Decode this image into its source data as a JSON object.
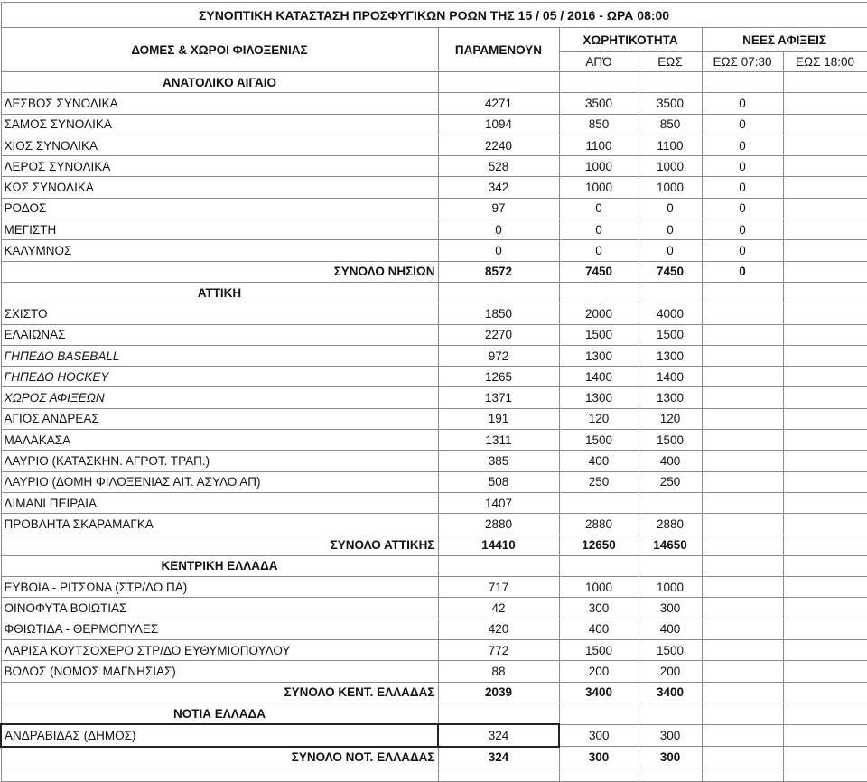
{
  "title": "ΣΥΝΟΠΤΙΚΗ ΚΑΤΑΣΤΑΣΗ ΠΡΟΣΦΥΓΙΚΩΝ ΡΟΩΝ ΤΗΣ 15 / 05 / 2016 - ΩΡΑ 08:00",
  "headers": {
    "structures": "ΔΟΜΕΣ & ΧΩΡΟΙ ΦΙΛΟΞΕΝΙΑΣ",
    "remaining": "ΠΑΡΑΜΕΝΟΥΝ",
    "capacity": "ΧΩΡΗΤΙΚΟΤΗΤΑ",
    "capacity_from": "ΑΠΌ",
    "capacity_to": "ΕΩΣ",
    "new_arrivals": "ΝΕΕΣ ΑΦΙΞΕΙΣ",
    "arrivals_0730": "ΕΩΣ 07:30",
    "arrivals_1800": "ΕΩΣ 18:00"
  },
  "sections": [
    {
      "name": "ΑΝΑΤΟΛΙΚΟ ΑΙΓΑΙΟ",
      "rows": [
        {
          "name": "ΛΕΣΒΟΣ ΣΥΝΟΛΙΚΑ",
          "remaining": "4271",
          "from": "3500",
          "to": "3500",
          "a0730": "0",
          "a1800": ""
        },
        {
          "name": "ΣΑΜΟΣ ΣΥΝΟΛΙΚΑ",
          "remaining": "1094",
          "from": "850",
          "to": "850",
          "a0730": "0",
          "a1800": ""
        },
        {
          "name": "ΧΙΟΣ ΣΥΝΟΛΙΚΑ",
          "remaining": "2240",
          "from": "1100",
          "to": "1100",
          "a0730": "0",
          "a1800": ""
        },
        {
          "name": "ΛΕΡΟΣ ΣΥΝΟΛΙΚΑ",
          "remaining": "528",
          "from": "1000",
          "to": "1000",
          "a0730": "0",
          "a1800": ""
        },
        {
          "name": "ΚΩΣ ΣΥΝΟΛΙΚΑ",
          "remaining": "342",
          "from": "1000",
          "to": "1000",
          "a0730": "0",
          "a1800": ""
        },
        {
          "name": "ΡΟΔΟΣ",
          "remaining": "97",
          "from": "0",
          "to": "0",
          "a0730": "0",
          "a1800": ""
        },
        {
          "name": "ΜΕΓΙΣΤΗ",
          "remaining": "0",
          "from": "0",
          "to": "0",
          "a0730": "0",
          "a1800": ""
        },
        {
          "name": "ΚΑΛΥΜΝΟΣ",
          "remaining": "0",
          "from": "0",
          "to": "0",
          "a0730": "0",
          "a1800": ""
        }
      ],
      "total": {
        "name": "ΣΥΝΟΛΟ ΝΗΣΙΩΝ",
        "remaining": "8572",
        "from": "7450",
        "to": "7450",
        "a0730": "0",
        "a1800": ""
      }
    },
    {
      "name": "ΑΤΤΙΚΗ",
      "rows": [
        {
          "name": "ΣΧΙΣΤΟ",
          "remaining": "1850",
          "from": "2000",
          "to": "4000",
          "a0730": "",
          "a1800": ""
        },
        {
          "name": "ΕΛΑΙΩΝΑΣ",
          "remaining": "2270",
          "from": "1500",
          "to": "1500",
          "a0730": "",
          "a1800": ""
        },
        {
          "name": "ΓΗΠΕΔΟ BASEBALL",
          "remaining": "972",
          "from": "1300",
          "to": "1300",
          "a0730": "",
          "a1800": "",
          "italic": true
        },
        {
          "name": "ΓΗΠΕΔΟ HOCKEY",
          "remaining": "1265",
          "from": "1400",
          "to": "1400",
          "a0730": "",
          "a1800": "",
          "italic": true
        },
        {
          "name": "ΧΩΡΟΣ ΑΦΙΞΕΩΝ",
          "remaining": "1371",
          "from": "1300",
          "to": "1300",
          "a0730": "",
          "a1800": "",
          "italic": true
        },
        {
          "name": "ΑΓΙΟΣ ΑΝΔΡΕΑΣ",
          "remaining": "191",
          "from": "120",
          "to": "120",
          "a0730": "",
          "a1800": ""
        },
        {
          "name": "ΜΑΛΑΚΑΣΑ",
          "remaining": "1311",
          "from": "1500",
          "to": "1500",
          "a0730": "",
          "a1800": ""
        },
        {
          "name": "ΛΑΥΡΙΟ (ΚΑΤΑΣΚΗΝ. ΑΓΡΟΤ. ΤΡΑΠ.)",
          "remaining": "385",
          "from": "400",
          "to": "400",
          "a0730": "",
          "a1800": ""
        },
        {
          "name": "ΛΑΥΡΙΟ (ΔΟΜΗ ΦΙΛΟΞΕΝΙΑΣ ΑΙΤ. ΑΣΥΛΟ ΑΠ)",
          "remaining": "508",
          "from": "250",
          "to": "250",
          "a0730": "",
          "a1800": ""
        },
        {
          "name": "ΛΙΜΑΝΙ ΠΕΙΡΑΙΑ",
          "remaining": "1407",
          "from": "",
          "to": "",
          "a0730": "",
          "a1800": ""
        },
        {
          "name": "ΠΡΟΒΛΗΤΑ ΣΚΑΡΑΜΑΓΚΑ",
          "remaining": "2880",
          "from": "2880",
          "to": "2880",
          "a0730": "",
          "a1800": ""
        }
      ],
      "total": {
        "name": "ΣΥΝΟΛΟ ΑΤΤΙΚΗΣ",
        "remaining": "14410",
        "from": "12650",
        "to": "14650",
        "a0730": "",
        "a1800": ""
      }
    },
    {
      "name": "ΚΕΝΤΡΙΚΗ ΕΛΛΑΔΑ",
      "rows": [
        {
          "name": "ΕΥΒΟΙΑ - ΡΙΤΣΩΝΑ (ΣΤΡ/ΔΟ ΠΑ)",
          "remaining": "717",
          "from": "1000",
          "to": "1000",
          "a0730": "",
          "a1800": ""
        },
        {
          "name": "ΟΙΝΟΦΥΤΑ ΒΟΙΩΤΙΑΣ",
          "remaining": "42",
          "from": "300",
          "to": "300",
          "a0730": "",
          "a1800": ""
        },
        {
          "name": "ΦΘΙΩΤΙΔΑ - ΘΕΡΜΟΠΥΛΕΣ",
          "remaining": "420",
          "from": "400",
          "to": "400",
          "a0730": "",
          "a1800": ""
        },
        {
          "name": "ΛΑΡΙΣΑ ΚΟΥΤΣΟΧΕΡΟ ΣΤΡ/ΔΟ ΕΥΘΥΜΙΟΠΟΥΛΟΥ",
          "remaining": "772",
          "from": "1500",
          "to": "1500",
          "a0730": "",
          "a1800": ""
        },
        {
          "name": "ΒΟΛΟΣ (ΝΟΜΟΣ ΜΑΓΝΗΣΙΑΣ)",
          "remaining": "88",
          "from": "200",
          "to": "200",
          "a0730": "",
          "a1800": ""
        }
      ],
      "total": {
        "name": "ΣΥΝΟΛΟ ΚΕΝΤ. ΕΛΛΑΔΑΣ",
        "remaining": "2039",
        "from": "3400",
        "to": "3400",
        "a0730": "",
        "a1800": ""
      }
    },
    {
      "name": "ΝΟΤΙΑ ΕΛΛΑΔΑ",
      "rows": [
        {
          "name": "ΑΝΔΡΑΒΙΔΑΣ (ΔΗΜΟΣ)",
          "remaining": "324",
          "from": "300",
          "to": "300",
          "a0730": "",
          "a1800": "",
          "highlight": true
        }
      ],
      "total": {
        "name": "ΣΥΝΟΛΟ ΝΟΤ. ΕΛΛΑΔΑΣ",
        "remaining": "324",
        "from": "300",
        "to": "300",
        "a0730": "",
        "a1800": ""
      }
    }
  ]
}
